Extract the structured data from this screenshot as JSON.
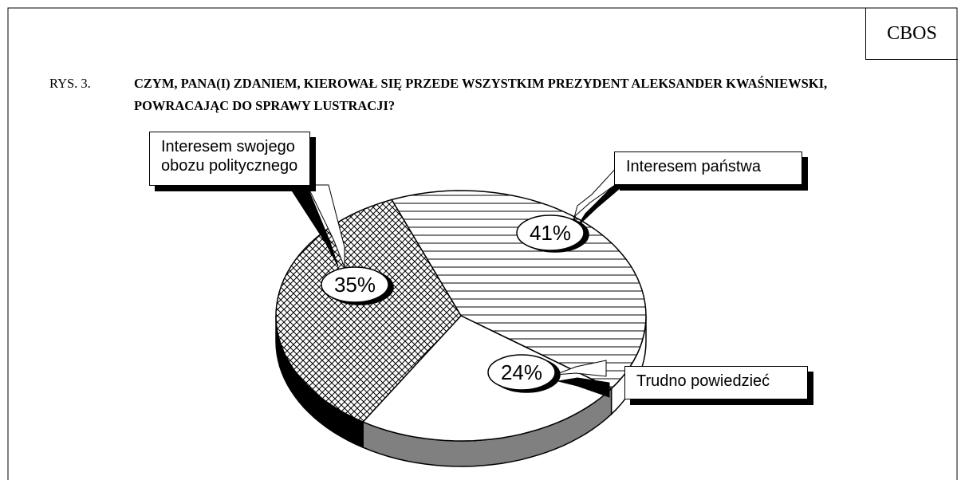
{
  "chart_data": {
    "type": "pie",
    "figure_label": "RYS. 3.",
    "title": "CZYM, PANA(I) ZDANIEM, KIEROWAŁ SIĘ PRZEDE WSZYSTKIM PREZYDENT ALEKSANDER KWAŚNIEWSKI, POWRACAJĄC DO SPRAWY LUSTRACJI?",
    "source": "CBOS",
    "categories": [
      "Interesem państwa",
      "Trudno powiedzieć",
      "Interesem swojego obozu politycznego"
    ],
    "values": [
      41,
      24,
      35
    ],
    "value_labels": [
      "41%",
      "24%",
      "35%"
    ],
    "colors": [
      "#ffffff",
      "#808080",
      "#000000"
    ]
  }
}
